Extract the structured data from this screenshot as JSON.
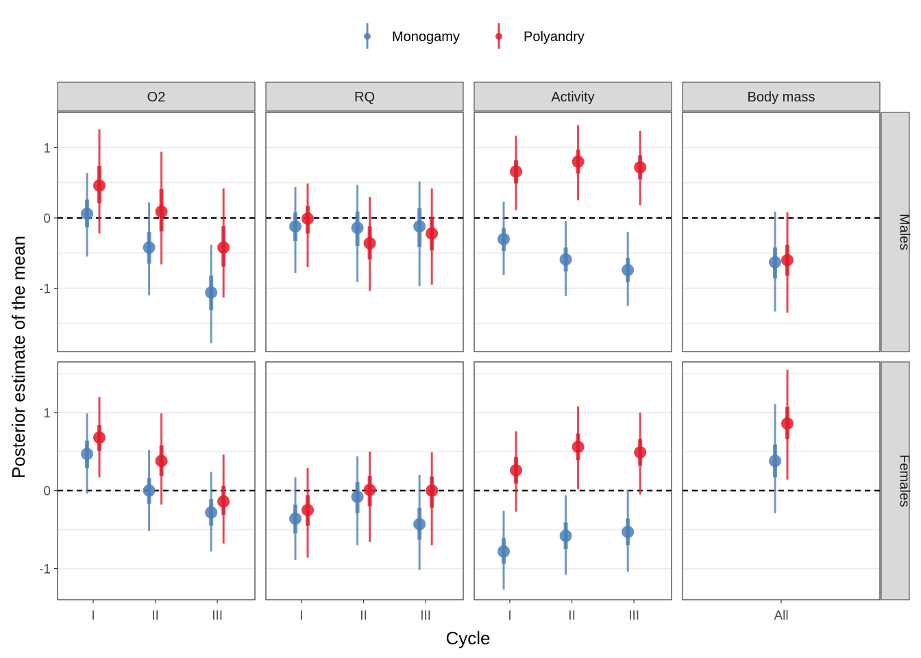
{
  "chart_data": {
    "type": "scatter",
    "subtype": "pointrange-faceted",
    "xlabel": "Cycle",
    "ylabel": "Posterior estimate of the mean",
    "legend": {
      "placement": "top",
      "entries": [
        {
          "name": "Monogamy",
          "color": "#4a7fb8"
        },
        {
          "name": "Polyandry",
          "color": "#e31a2c"
        }
      ]
    },
    "facet_columns": [
      "O2",
      "RQ",
      "Activity",
      "Body mass"
    ],
    "facet_rows": [
      "Males",
      "Females"
    ],
    "y_ticks": [
      "-1",
      "0",
      "1"
    ],
    "reference_line": 0,
    "panels": [
      {
        "row": "Males",
        "col": "O2",
        "ylim": [
          -1.9,
          1.5
        ],
        "categories": [
          "I",
          "II",
          "III"
        ],
        "points": [
          {
            "cat": "I",
            "group": "Monogamy",
            "mean": 0.06,
            "lo66": -0.13,
            "hi66": 0.26,
            "lo95": -0.55,
            "hi95": 0.64
          },
          {
            "cat": "I",
            "group": "Polyandry",
            "mean": 0.46,
            "lo66": 0.21,
            "hi66": 0.74,
            "lo95": -0.22,
            "hi95": 1.26
          },
          {
            "cat": "II",
            "group": "Monogamy",
            "mean": -0.42,
            "lo66": -0.65,
            "hi66": -0.2,
            "lo95": -1.1,
            "hi95": 0.22
          },
          {
            "cat": "II",
            "group": "Polyandry",
            "mean": 0.09,
            "lo66": -0.19,
            "hi66": 0.41,
            "lo95": -0.66,
            "hi95": 0.94
          },
          {
            "cat": "III",
            "group": "Monogamy",
            "mean": -1.06,
            "lo66": -1.31,
            "hi66": -0.82,
            "lo95": -1.78,
            "hi95": -0.38
          },
          {
            "cat": "III",
            "group": "Polyandry",
            "mean": -0.42,
            "lo66": -0.69,
            "hi66": -0.12,
            "lo95": -1.13,
            "hi95": 0.42
          }
        ]
      },
      {
        "row": "Males",
        "col": "RQ",
        "ylim": [
          -1.9,
          1.5
        ],
        "categories": [
          "I",
          "II",
          "III"
        ],
        "points": [
          {
            "cat": "I",
            "group": "Monogamy",
            "mean": -0.12,
            "lo66": -0.33,
            "hi66": 0.08,
            "lo95": -0.78,
            "hi95": 0.44
          },
          {
            "cat": "I",
            "group": "Polyandry",
            "mean": -0.01,
            "lo66": -0.22,
            "hi66": 0.17,
            "lo95": -0.7,
            "hi95": 0.49
          },
          {
            "cat": "II",
            "group": "Monogamy",
            "mean": -0.14,
            "lo66": -0.4,
            "hi66": 0.09,
            "lo95": -0.91,
            "hi95": 0.47
          },
          {
            "cat": "II",
            "group": "Polyandry",
            "mean": -0.36,
            "lo66": -0.59,
            "hi66": -0.12,
            "lo95": -1.04,
            "hi95": 0.3
          },
          {
            "cat": "III",
            "group": "Monogamy",
            "mean": -0.12,
            "lo66": -0.41,
            "hi66": 0.14,
            "lo95": -0.97,
            "hi95": 0.52
          },
          {
            "cat": "III",
            "group": "Polyandry",
            "mean": -0.22,
            "lo66": -0.46,
            "hi66": 0.02,
            "lo95": -0.95,
            "hi95": 0.42
          }
        ]
      },
      {
        "row": "Males",
        "col": "Activity",
        "ylim": [
          -1.9,
          1.5
        ],
        "categories": [
          "I",
          "II",
          "III"
        ],
        "points": [
          {
            "cat": "I",
            "group": "Monogamy",
            "mean": -0.3,
            "lo66": -0.47,
            "hi66": -0.14,
            "lo95": -0.81,
            "hi95": 0.23
          },
          {
            "cat": "I",
            "group": "Polyandry",
            "mean": 0.66,
            "lo66": 0.49,
            "hi66": 0.82,
            "lo95": 0.11,
            "hi95": 1.17
          },
          {
            "cat": "II",
            "group": "Monogamy",
            "mean": -0.59,
            "lo66": -0.76,
            "hi66": -0.42,
            "lo95": -1.11,
            "hi95": -0.04
          },
          {
            "cat": "II",
            "group": "Polyandry",
            "mean": 0.8,
            "lo66": 0.63,
            "hi66": 0.97,
            "lo95": 0.25,
            "hi95": 1.32
          },
          {
            "cat": "III",
            "group": "Monogamy",
            "mean": -0.74,
            "lo66": -0.91,
            "hi66": -0.57,
            "lo95": -1.25,
            "hi95": -0.2
          },
          {
            "cat": "III",
            "group": "Polyandry",
            "mean": 0.72,
            "lo66": 0.55,
            "hi66": 0.89,
            "lo95": 0.18,
            "hi95": 1.24
          }
        ]
      },
      {
        "row": "Males",
        "col": "Body mass",
        "ylim": [
          -1.9,
          1.5
        ],
        "categories": [
          "All"
        ],
        "points": [
          {
            "cat": "All",
            "group": "Monogamy",
            "mean": -0.63,
            "lo66": -0.86,
            "hi66": -0.42,
            "lo95": -1.33,
            "hi95": 0.09
          },
          {
            "cat": "All",
            "group": "Polyandry",
            "mean": -0.6,
            "lo66": -0.82,
            "hi66": -0.38,
            "lo95": -1.35,
            "hi95": 0.08
          }
        ]
      },
      {
        "row": "Females",
        "col": "O2",
        "ylim": [
          -1.4,
          1.65
        ],
        "categories": [
          "I",
          "II",
          "III"
        ],
        "points": [
          {
            "cat": "I",
            "group": "Monogamy",
            "mean": 0.47,
            "lo66": 0.29,
            "hi66": 0.64,
            "lo95": -0.04,
            "hi95": 0.99
          },
          {
            "cat": "I",
            "group": "Polyandry",
            "mean": 0.68,
            "lo66": 0.51,
            "hi66": 0.84,
            "lo95": 0.17,
            "hi95": 1.2
          },
          {
            "cat": "II",
            "group": "Monogamy",
            "mean": 0.0,
            "lo66": -0.17,
            "hi66": 0.16,
            "lo95": -0.52,
            "hi95": 0.52
          },
          {
            "cat": "II",
            "group": "Polyandry",
            "mean": 0.38,
            "lo66": 0.19,
            "hi66": 0.58,
            "lo95": -0.18,
            "hi95": 0.99
          },
          {
            "cat": "III",
            "group": "Monogamy",
            "mean": -0.28,
            "lo66": -0.45,
            "hi66": -0.11,
            "lo95": -0.78,
            "hi95": 0.24
          },
          {
            "cat": "III",
            "group": "Polyandry",
            "mean": -0.14,
            "lo66": -0.31,
            "hi66": 0.06,
            "lo95": -0.68,
            "hi95": 0.46
          }
        ]
      },
      {
        "row": "Females",
        "col": "RQ",
        "ylim": [
          -1.4,
          1.65
        ],
        "categories": [
          "I",
          "II",
          "III"
        ],
        "points": [
          {
            "cat": "I",
            "group": "Monogamy",
            "mean": -0.36,
            "lo66": -0.55,
            "hi66": -0.18,
            "lo95": -0.89,
            "hi95": 0.17
          },
          {
            "cat": "I",
            "group": "Polyandry",
            "mean": -0.25,
            "lo66": -0.45,
            "hi66": -0.06,
            "lo95": -0.86,
            "hi95": 0.29
          },
          {
            "cat": "II",
            "group": "Monogamy",
            "mean": -0.08,
            "lo66": -0.29,
            "hi66": 0.11,
            "lo95": -0.7,
            "hi95": 0.44
          },
          {
            "cat": "II",
            "group": "Polyandry",
            "mean": 0.01,
            "lo66": -0.2,
            "hi66": 0.19,
            "lo95": -0.66,
            "hi95": 0.5
          },
          {
            "cat": "III",
            "group": "Monogamy",
            "mean": -0.43,
            "lo66": -0.63,
            "hi66": -0.22,
            "lo95": -1.02,
            "hi95": 0.2
          },
          {
            "cat": "III",
            "group": "Polyandry",
            "mean": 0.0,
            "lo66": -0.22,
            "hi66": 0.18,
            "lo95": -0.7,
            "hi95": 0.49
          }
        ]
      },
      {
        "row": "Females",
        "col": "Activity",
        "ylim": [
          -1.4,
          1.65
        ],
        "categories": [
          "I",
          "II",
          "III"
        ],
        "points": [
          {
            "cat": "I",
            "group": "Monogamy",
            "mean": -0.78,
            "lo66": -0.94,
            "hi66": -0.61,
            "lo95": -1.27,
            "hi95": -0.26
          },
          {
            "cat": "I",
            "group": "Polyandry",
            "mean": 0.26,
            "lo66": 0.09,
            "hi66": 0.43,
            "lo95": -0.27,
            "hi95": 0.76
          },
          {
            "cat": "II",
            "group": "Monogamy",
            "mean": -0.58,
            "lo66": -0.75,
            "hi66": -0.41,
            "lo95": -1.08,
            "hi95": -0.06
          },
          {
            "cat": "II",
            "group": "Polyandry",
            "mean": 0.56,
            "lo66": 0.39,
            "hi66": 0.73,
            "lo95": 0.02,
            "hi95": 1.08
          },
          {
            "cat": "III",
            "group": "Monogamy",
            "mean": -0.53,
            "lo66": -0.7,
            "hi66": -0.36,
            "lo95": -1.04,
            "hi95": 0.01
          },
          {
            "cat": "III",
            "group": "Polyandry",
            "mean": 0.49,
            "lo66": 0.32,
            "hi66": 0.66,
            "lo95": -0.05,
            "hi95": 1.0
          }
        ]
      },
      {
        "row": "Females",
        "col": "Body mass",
        "ylim": [
          -1.4,
          1.65
        ],
        "categories": [
          "All"
        ],
        "points": [
          {
            "cat": "All",
            "group": "Monogamy",
            "mean": 0.38,
            "lo66": 0.17,
            "hi66": 0.59,
            "lo95": -0.29,
            "hi95": 1.11
          },
          {
            "cat": "All",
            "group": "Polyandry",
            "mean": 0.86,
            "lo66": 0.66,
            "hi66": 1.07,
            "lo95": 0.14,
            "hi95": 1.55
          }
        ]
      }
    ]
  }
}
